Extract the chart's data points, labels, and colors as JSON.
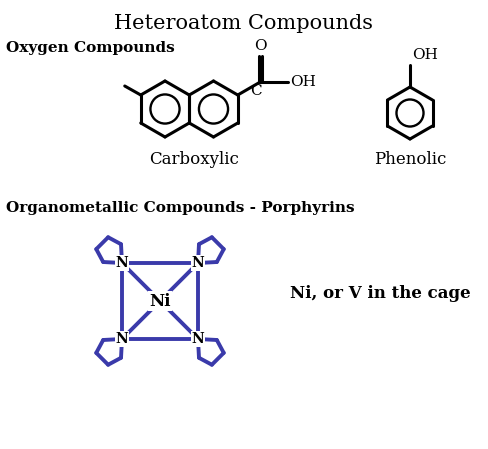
{
  "title": "Heteroatom Compounds",
  "title_fontsize": 15,
  "bg_color": "#ffffff",
  "oxygen_label": "Oxygen Compounds",
  "carboxylic_label": "Carboxylic",
  "phenolic_label": "Phenolic",
  "organometallic_label": "Organometallic Compounds - Porphyrins",
  "ni_label": "Ni, or V in the cage",
  "black": "#000000",
  "blue": "#3a3aaa",
  "lw_black": 2.2,
  "lw_blue": 2.8,
  "figw": 4.88,
  "figh": 4.49,
  "dpi": 100
}
